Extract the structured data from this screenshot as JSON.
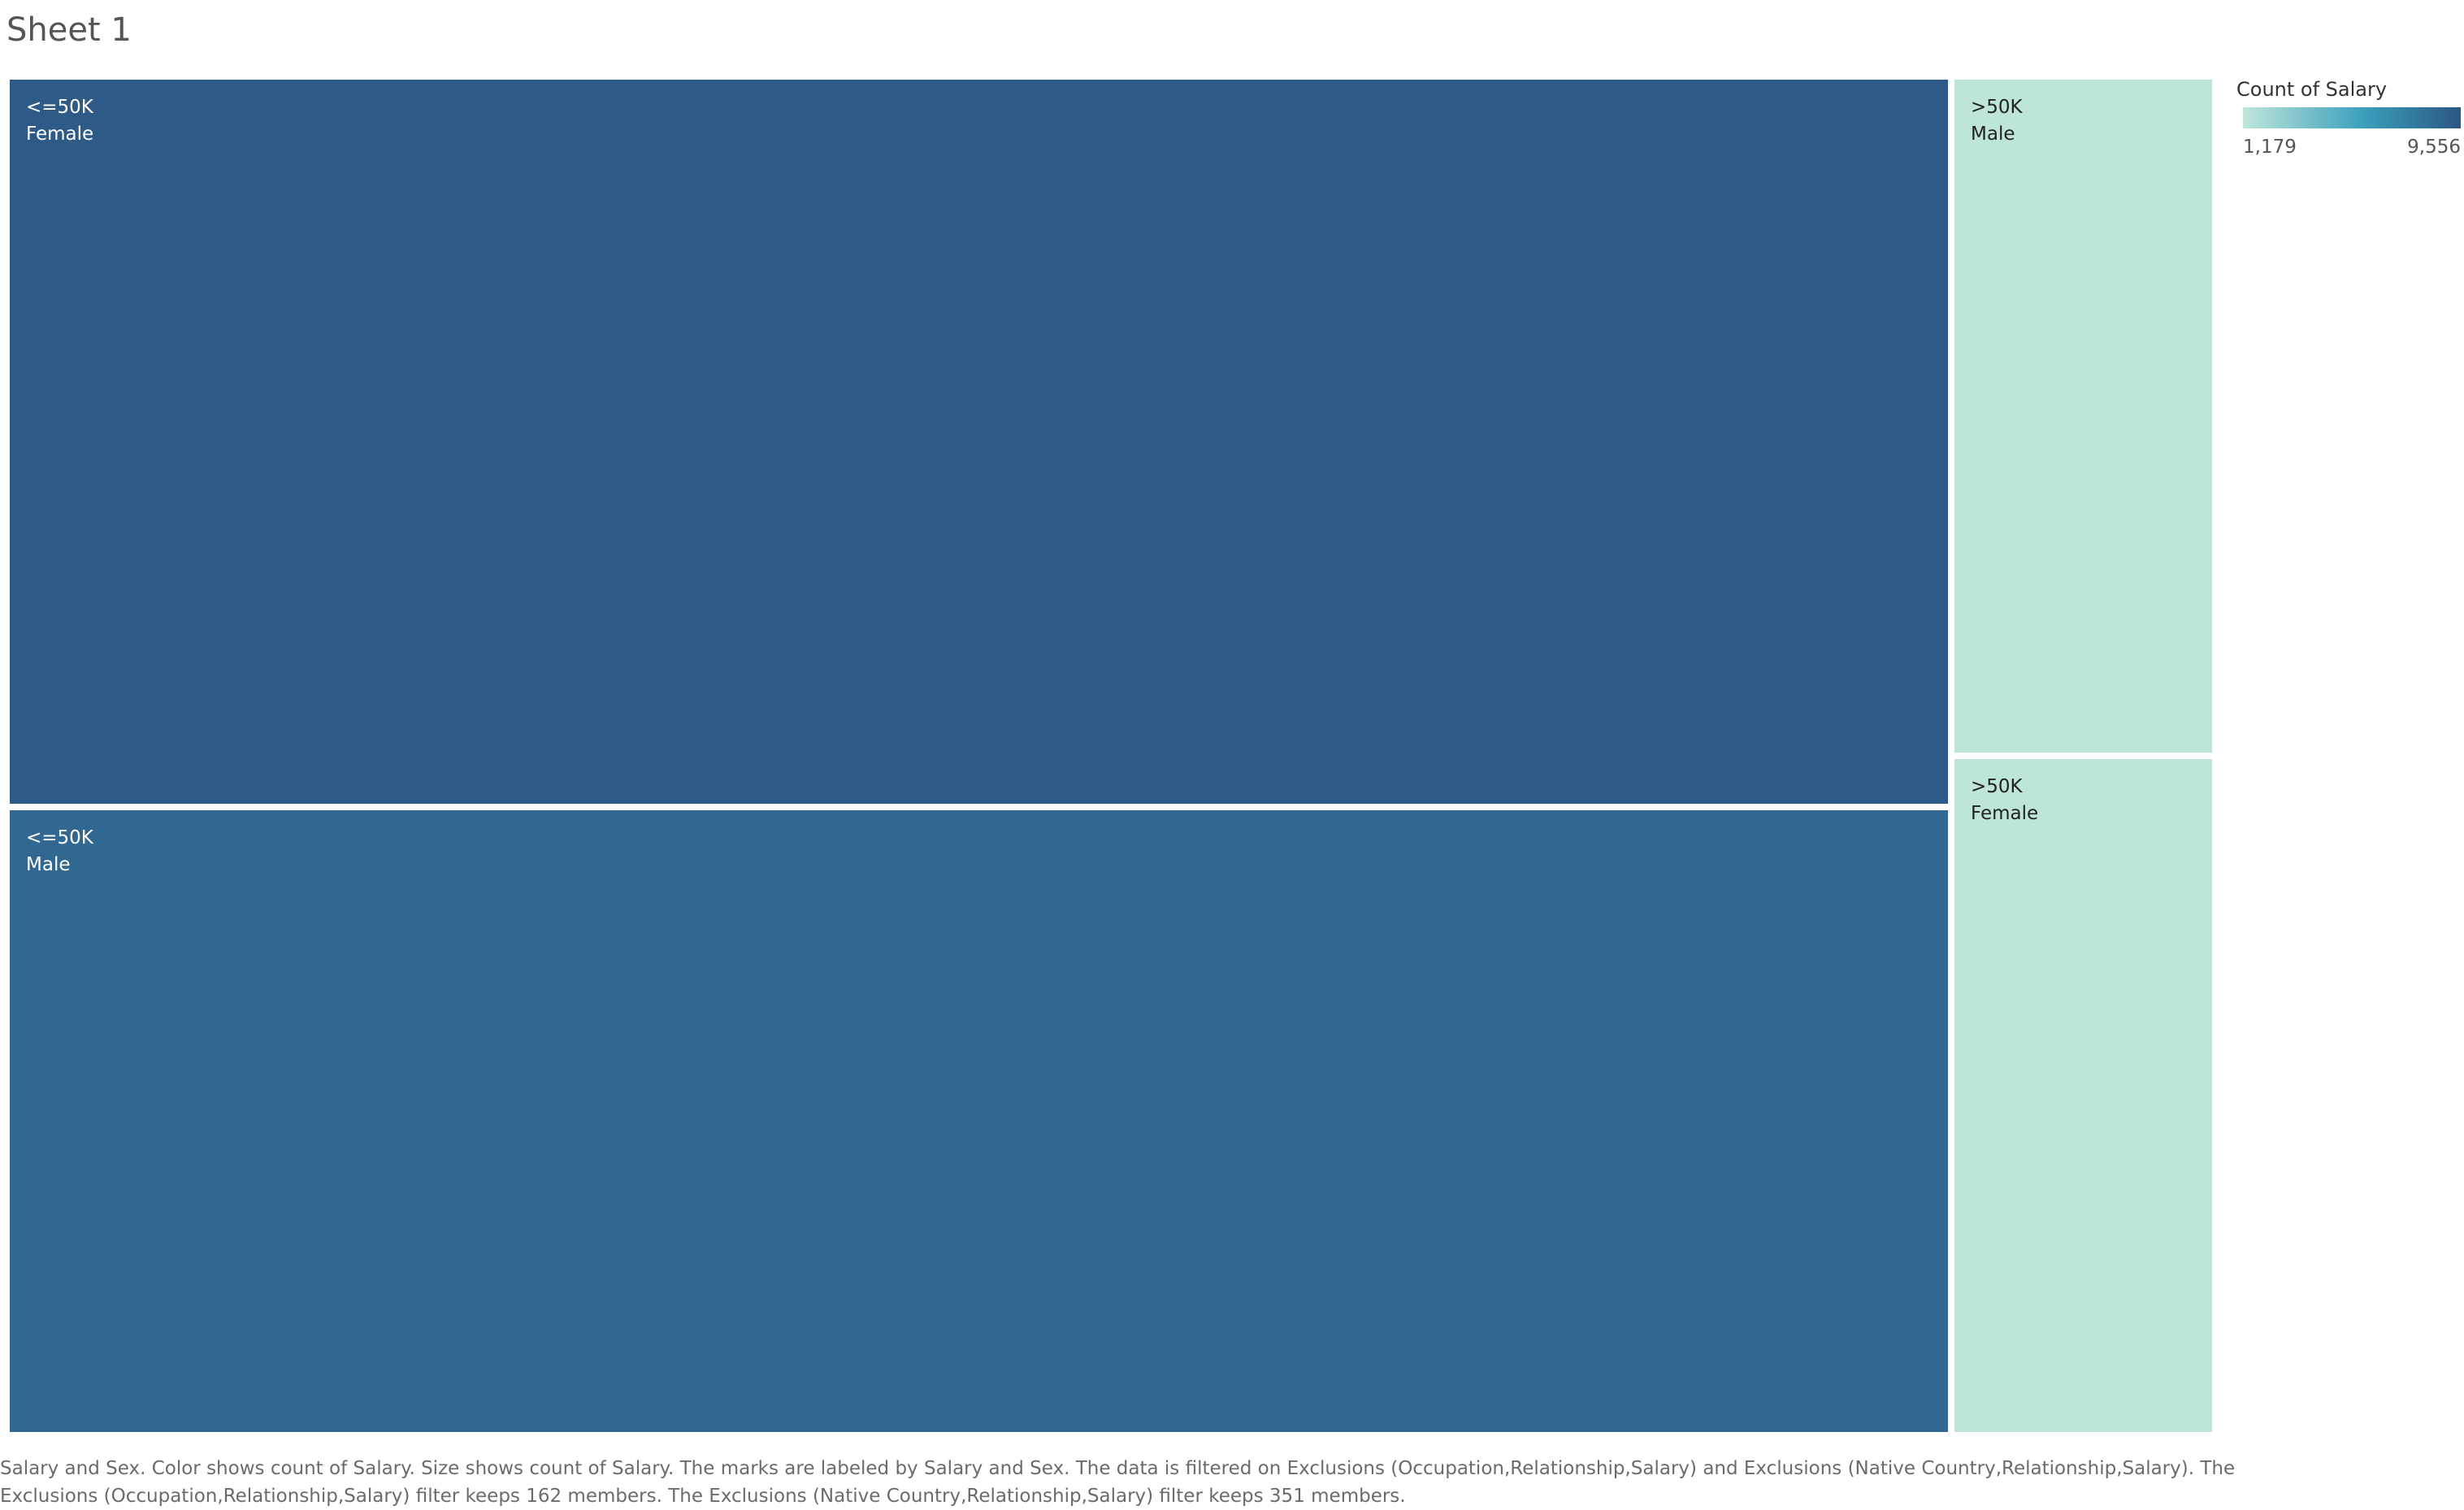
{
  "sheet": {
    "title": "Sheet 1"
  },
  "legend": {
    "title": "Count of Salary",
    "min_label": "1,179",
    "max_label": "9,556",
    "color_low": "#bfe6db",
    "color_mid": "#3aa0bd",
    "color_high": "#2c5784"
  },
  "chart_data": {
    "type": "treemap",
    "size_measure": "Count of Salary",
    "color_measure": "Count of Salary",
    "groups": [
      {
        "salary": "<=50K",
        "items": [
          {
            "salary": "<=50K",
            "sex": "Female",
            "value": 9556,
            "color": "#2d5a86",
            "text_color": "#ffffff"
          },
          {
            "salary": "<=50K",
            "sex": "Male",
            "value": 8200,
            "color": "#316892",
            "text_color": "#ffffff"
          }
        ]
      },
      {
        "salary": ">50K",
        "items": [
          {
            "salary": ">50K",
            "sex": "Male",
            "value": 1179,
            "color": "#bde5d9",
            "text_color": "#222222"
          },
          {
            "salary": ">50K",
            "sex": "Female",
            "value": 1179,
            "color": "#bde5d9",
            "text_color": "#222222"
          }
        ]
      }
    ]
  },
  "caption": {
    "text": "Salary and Sex.  Color shows count of Salary.  Size shows count of Salary.  The marks are labeled by Salary and Sex. The data is filtered on Exclusions (Occupation,Relationship,Salary) and Exclusions (Native Country,Relationship,Salary). The Exclusions (Occupation,Relationship,Salary) filter keeps 162 members. The Exclusions (Native Country,Relationship,Salary) filter keeps 351 members."
  }
}
